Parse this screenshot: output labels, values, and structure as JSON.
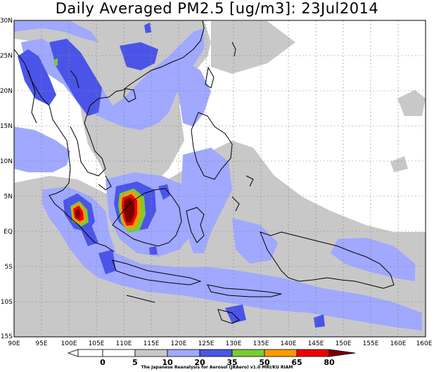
{
  "title": "Daily Averaged PM2.5 [ug/m3]: 23Jul2014",
  "lat_labels": [
    "30N",
    "25N",
    "20N",
    "15N",
    "10N",
    "5N",
    "EQ",
    "5S",
    "10S",
    "15S"
  ],
  "lon_labels": [
    "90E",
    "95E",
    "100E",
    "105E",
    "110E",
    "115E",
    "120E",
    "125E",
    "130E",
    "135E",
    "140E",
    "145E",
    "150E",
    "155E",
    "160E"
  ],
  "colorbar": {
    "levels": [
      "0",
      "5",
      "10",
      "20",
      "35",
      "50",
      "65",
      "80"
    ],
    "colors": [
      "#ffffff",
      "#ffffff",
      "#c8c8c8",
      "#a0a8ff",
      "#4a55e8",
      "#7acc30",
      "#ff9a00",
      "#ee0000",
      "#7a0000"
    ]
  },
  "credit": "The Japanese Reanalysis for Aerosol (JRAero) v1.0 MRI/KU RIAM"
}
